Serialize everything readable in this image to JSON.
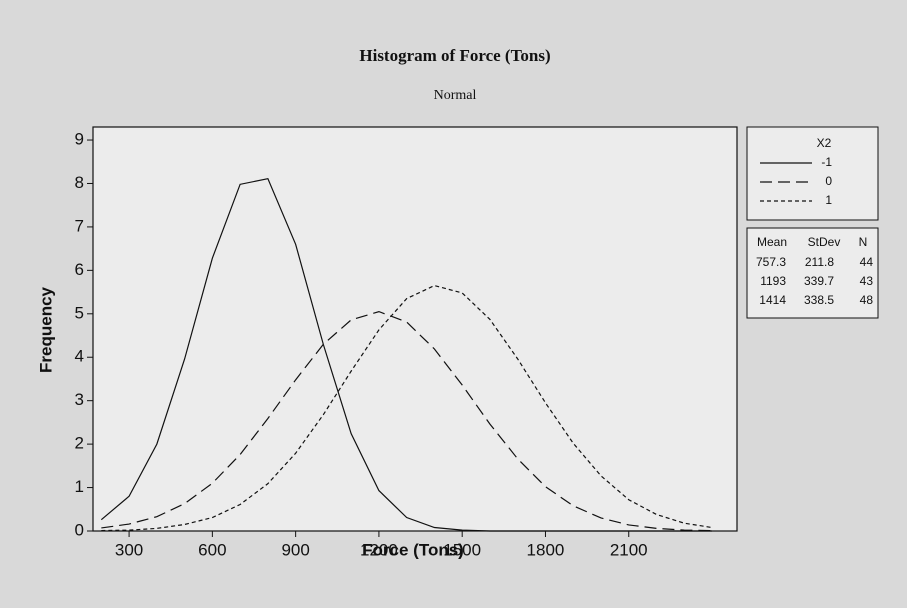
{
  "chart_data": {
    "type": "line",
    "title": "Histogram of Force (Tons)",
    "subtitle": "Normal",
    "x_label": "Force (Tons)",
    "y_label": "Frequency",
    "x": [
      200,
      300,
      400,
      500,
      600,
      700,
      800,
      900,
      1000,
      1100,
      1200,
      1300,
      1400,
      1500,
      1600,
      1700,
      1800,
      1900,
      2000,
      2100,
      2200,
      2300,
      2400
    ],
    "series": [
      {
        "name": "-1",
        "color": "#111111",
        "line_style": "solid",
        "values": [
          0.26,
          0.8,
          2.0,
          3.96,
          6.28,
          7.98,
          8.11,
          6.6,
          4.29,
          2.24,
          0.93,
          0.31,
          0.08,
          0.02,
          0,
          0,
          0,
          0,
          0,
          0,
          0,
          0,
          0
        ]
      },
      {
        "name": "0",
        "color": "#111111",
        "line_style": "long-dash",
        "values": [
          0.07,
          0.16,
          0.33,
          0.63,
          1.1,
          1.76,
          2.59,
          3.48,
          4.3,
          4.86,
          5.05,
          4.81,
          4.19,
          3.36,
          2.46,
          1.66,
          1.02,
          0.58,
          0.3,
          0.14,
          0.06,
          0.02,
          0.01
        ]
      },
      {
        "name": "1",
        "color": "#111111",
        "line_style": "short-dash",
        "values": [
          0.01,
          0.02,
          0.06,
          0.15,
          0.31,
          0.61,
          1.09,
          1.79,
          2.68,
          3.68,
          4.63,
          5.35,
          5.65,
          5.48,
          4.87,
          3.96,
          2.95,
          2.02,
          1.27,
          0.72,
          0.38,
          0.18,
          0.08
        ]
      }
    ],
    "legend_title": "X2",
    "stats": {
      "columns": [
        "Mean",
        "StDev",
        "N"
      ],
      "rows": [
        [
          757.3,
          211.8,
          44
        ],
        [
          1193,
          339.7,
          43
        ],
        [
          1414,
          338.5,
          48
        ]
      ]
    },
    "xlim": [
      170,
      2490
    ],
    "xticks": [
      300,
      600,
      900,
      1200,
      1500,
      1800,
      2100
    ],
    "ylim": [
      0,
      9.3
    ],
    "yticks": [
      0,
      1,
      2,
      3,
      4,
      5,
      6,
      7,
      8,
      9
    ],
    "grid": false,
    "legend_position": "right"
  }
}
